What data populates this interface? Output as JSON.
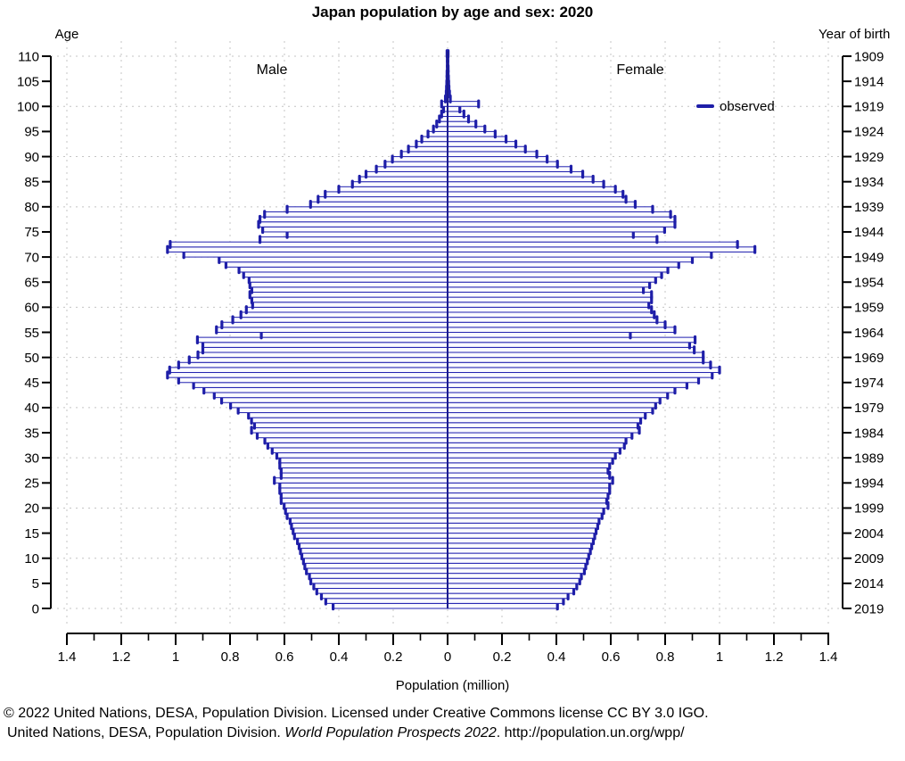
{
  "title": "Japan population by age and sex: 2020",
  "labels": {
    "left_axis": "Age",
    "right_axis": "Year of birth",
    "male": "Male",
    "female": "Female",
    "xlabel": "Population (million)"
  },
  "legend": {
    "label": "observed"
  },
  "footer": {
    "line1": "© 2022 United Nations, DESA, Population Division. Licensed under Creative Commons license CC BY 3.0 IGO.",
    "line2_prefix": "United Nations, DESA, Population Division. ",
    "line2_italic": "World Population Prospects 2022",
    "line2_suffix": ". http://population.un.org/wpp/"
  },
  "chart_data": {
    "type": "bar",
    "variant": "population-pyramid",
    "title": "Japan population by age and sex: 2020",
    "xlabel": "Population (million)",
    "x_axis": {
      "range_million": [
        -1.4,
        1.4
      ],
      "major_tick_step": 0.2,
      "minor_tick_step": 0.1,
      "tick_labels": [
        "1.4",
        "1.2",
        "1",
        "0.8",
        "0.6",
        "0.4",
        "0.2",
        "0",
        "0.2",
        "0.4",
        "0.6",
        "0.8",
        "1",
        "1.2",
        "1.4"
      ]
    },
    "age_axis": {
      "label": "Age",
      "min": 0,
      "max": 110,
      "tick_step": 5
    },
    "year_axis": {
      "label": "Year of birth",
      "top_year": 1909,
      "bottom_year": 2019,
      "tick_step": 5
    },
    "grid": {
      "vertical_step_million": 0.2,
      "horizontal_step_years": 10,
      "style": "dashed"
    },
    "legend": {
      "label": "observed",
      "position": "upper-right"
    },
    "colors": {
      "bar_stroke": "#2323b0",
      "bar_cap": "#1e1ea8",
      "bar_fill": "#fafaff",
      "center_line": "#1b1b8f",
      "grid": "#c4c4c4",
      "axis": "#000000"
    },
    "ages": "single years 0 through 110",
    "series": [
      {
        "name": "Male",
        "side": "left",
        "unit": "million persons",
        "values": [
          0.421,
          0.448,
          0.464,
          0.481,
          0.492,
          0.503,
          0.508,
          0.519,
          0.525,
          0.53,
          0.536,
          0.541,
          0.546,
          0.552,
          0.563,
          0.568,
          0.574,
          0.579,
          0.59,
          0.596,
          0.601,
          0.612,
          0.612,
          0.617,
          0.617,
          0.637,
          0.612,
          0.612,
          0.617,
          0.617,
          0.628,
          0.645,
          0.661,
          0.672,
          0.7,
          0.721,
          0.71,
          0.721,
          0.732,
          0.77,
          0.798,
          0.831,
          0.858,
          0.896,
          0.934,
          0.989,
          1.03,
          1.022,
          0.989,
          0.95,
          0.918,
          0.9,
          0.9,
          0.92,
          0.685,
          0.85,
          0.83,
          0.79,
          0.76,
          0.74,
          0.717,
          0.72,
          0.727,
          0.72,
          0.727,
          0.73,
          0.75,
          0.767,
          0.815,
          0.84,
          0.97,
          1.03,
          1.02,
          0.69,
          0.59,
          0.68,
          0.695,
          0.69,
          0.673,
          0.59,
          0.504,
          0.476,
          0.45,
          0.4,
          0.35,
          0.324,
          0.3,
          0.262,
          0.23,
          0.203,
          0.17,
          0.144,
          0.115,
          0.095,
          0.072,
          0.052,
          0.04,
          0.03,
          0.022,
          0.015,
          0.022,
          0.008,
          0.005,
          0.004,
          0.003,
          0.002,
          0.002,
          0.001,
          0.001,
          0.001,
          0.002
        ]
      },
      {
        "name": "Female",
        "side": "right",
        "unit": "million persons",
        "values": [
          0.404,
          0.426,
          0.443,
          0.464,
          0.475,
          0.486,
          0.492,
          0.503,
          0.508,
          0.514,
          0.519,
          0.525,
          0.53,
          0.536,
          0.541,
          0.546,
          0.552,
          0.557,
          0.568,
          0.574,
          0.59,
          0.585,
          0.59,
          0.596,
          0.596,
          0.607,
          0.596,
          0.59,
          0.596,
          0.607,
          0.617,
          0.634,
          0.65,
          0.656,
          0.678,
          0.705,
          0.7,
          0.71,
          0.727,
          0.754,
          0.765,
          0.781,
          0.809,
          0.836,
          0.88,
          0.923,
          0.973,
          1.0,
          0.967,
          0.94,
          0.94,
          0.907,
          0.89,
          0.91,
          0.672,
          0.836,
          0.8,
          0.77,
          0.76,
          0.75,
          0.74,
          0.75,
          0.75,
          0.72,
          0.743,
          0.765,
          0.787,
          0.81,
          0.85,
          0.9,
          0.97,
          1.13,
          1.066,
          0.77,
          0.683,
          0.798,
          0.836,
          0.836,
          0.82,
          0.754,
          0.69,
          0.656,
          0.645,
          0.617,
          0.574,
          0.535,
          0.497,
          0.454,
          0.404,
          0.366,
          0.328,
          0.286,
          0.251,
          0.215,
          0.175,
          0.137,
          0.104,
          0.077,
          0.06,
          0.045,
          0.114,
          0.01,
          0.007,
          0.005,
          0.004,
          0.003,
          0.002,
          0.002,
          0.001,
          0.001,
          0.002
        ]
      }
    ]
  }
}
